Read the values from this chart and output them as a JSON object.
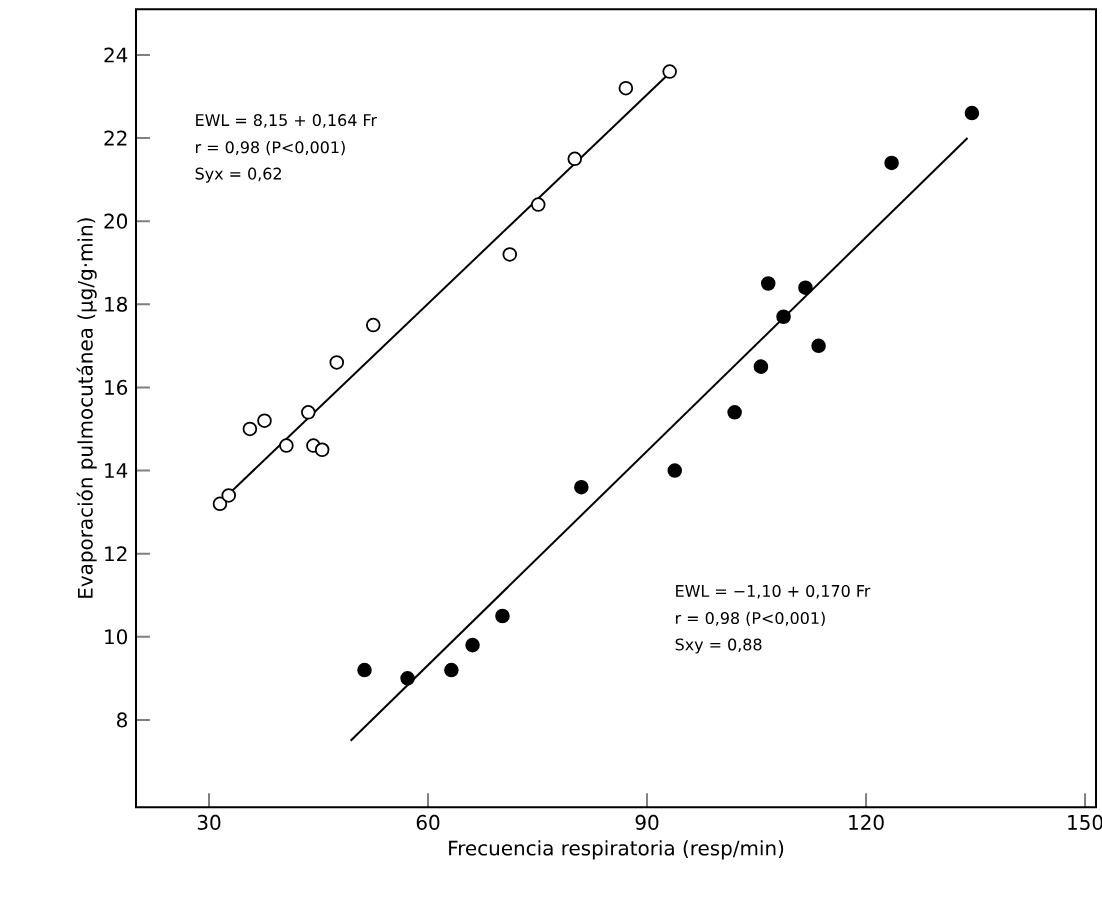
{
  "chart_data": {
    "type": "scatter",
    "xlabel": "Frecuencia respiratoria (resp/min)",
    "ylabel": "Evaporación pulmocutánea (µg/g·min)",
    "xlim": [
      20,
      151.5
    ],
    "ylim": [
      5.9,
      25.1
    ],
    "xticks": [
      30,
      60,
      90,
      120,
      150
    ],
    "yticks": [
      8,
      10,
      12,
      14,
      16,
      18,
      20,
      22,
      24
    ],
    "grid": false,
    "marker": "circle",
    "series": [
      {
        "color": "#ffffff",
        "x": [
          31.5,
          32.7,
          35.6,
          37.6,
          40.6,
          43.6,
          44.3,
          45.5,
          47.5,
          52.5,
          71.2,
          75.1,
          80.1,
          87.1,
          93.1
        ],
        "values": [
          13.2,
          13.4,
          15.0,
          15.2,
          14.6,
          15.4,
          14.6,
          14.5,
          16.6,
          17.5,
          19.2,
          20.4,
          21.5,
          23.2,
          23.6
        ]
      },
      {
        "color": "#000000",
        "x": [
          51.3,
          57.2,
          63.2,
          66.1,
          70.2,
          81.0,
          93.8,
          102.0,
          105.6,
          106.6,
          108.7,
          111.7,
          113.5,
          123.5,
          134.5
        ],
        "values": [
          9.2,
          9.0,
          9.2,
          9.8,
          10.5,
          13.6,
          14.0,
          15.4,
          16.5,
          18.5,
          17.7,
          18.4,
          17.0,
          21.4,
          22.6
        ]
      },
      {
        "type": "line",
        "color": "#000000",
        "marker": "none",
        "x": [
          31.9,
          93.6
        ],
        "values": [
          13.3,
          23.65
        ]
      },
      {
        "type": "line",
        "color": "#000000",
        "marker": "none",
        "x": [
          49.4,
          133.9
        ],
        "values": [
          7.5,
          22.0
        ]
      }
    ],
    "annotations": [
      "EWL = 8,15 + 0,164 Fr",
      "r = 0,98 (P<0,001)",
      "Syx = 0,62",
      "EWL = −1,10 + 0,170 Fr",
      "r = 0,98 (P<0,001)",
      "Sxy = 0,88"
    ]
  }
}
